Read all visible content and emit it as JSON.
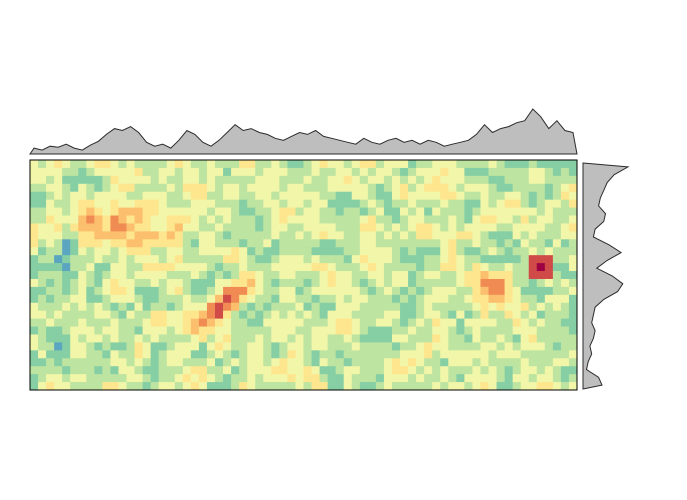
{
  "chart_data": {
    "type": "heatmap",
    "title": "",
    "xlabel": "",
    "ylabel": "",
    "grid": false,
    "legend": "none",
    "raster": {
      "cols": 68,
      "rows": 29,
      "value_range": [
        0,
        1
      ]
    },
    "palette": [
      "#3f74b8",
      "#5aa6c0",
      "#86cfa5",
      "#bde4a0",
      "#f2f6a8",
      "#fde68e",
      "#fbbf6d",
      "#f08c53",
      "#d04a48",
      "#9e0142"
    ],
    "colors": {
      "marginal_fill": "#bebebe",
      "marginal_stroke": "#2b2b2b",
      "frame": "#000000"
    },
    "features": [
      {
        "name": "diagonal-ridge",
        "x": 0.36,
        "y": 0.62,
        "value": 0.78
      },
      {
        "name": "upper-left-band",
        "x": 0.17,
        "y": 0.27,
        "value": 0.62
      },
      {
        "name": "hotspot",
        "x": 0.93,
        "y": 0.46,
        "value": 1.0
      },
      {
        "name": "lower-right-bump",
        "x": 0.84,
        "y": 0.57,
        "value": 0.6
      }
    ],
    "column_profile": [
      0.06,
      0.04,
      0.08,
      0.07,
      0.1,
      0.06,
      0.04,
      0.09,
      0.13,
      0.2,
      0.26,
      0.24,
      0.28,
      0.22,
      0.12,
      0.08,
      0.1,
      0.06,
      0.14,
      0.24,
      0.2,
      0.12,
      0.08,
      0.14,
      0.22,
      0.3,
      0.24,
      0.26,
      0.22,
      0.2,
      0.16,
      0.14,
      0.18,
      0.22,
      0.2,
      0.24,
      0.18,
      0.16,
      0.14,
      0.12,
      0.1,
      0.16,
      0.12,
      0.1,
      0.14,
      0.16,
      0.12,
      0.14,
      0.1,
      0.14,
      0.12,
      0.08,
      0.1,
      0.12,
      0.14,
      0.2,
      0.3,
      0.22,
      0.26,
      0.28,
      0.32,
      0.34,
      0.46,
      0.38,
      0.26,
      0.34,
      0.24,
      0.22
    ],
    "row_profile": [
      0.52,
      0.36,
      0.28,
      0.24,
      0.2,
      0.18,
      0.26,
      0.24,
      0.14,
      0.12,
      0.3,
      0.44,
      0.28,
      0.16,
      0.34,
      0.46,
      0.4,
      0.24,
      0.14,
      0.12,
      0.1,
      0.14,
      0.12,
      0.08,
      0.1,
      0.06,
      0.04,
      0.18,
      0.22
    ]
  }
}
